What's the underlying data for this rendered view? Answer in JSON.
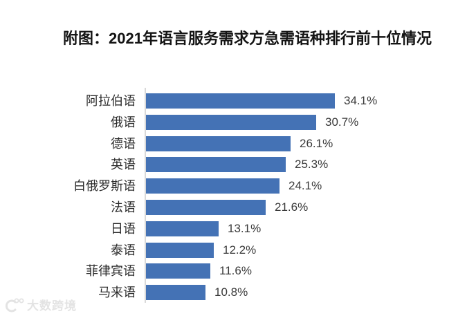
{
  "chart_data": {
    "type": "bar",
    "orientation": "horizontal",
    "title": "附图：2021年语言服务需求方急需语种排行前十位情况",
    "categories": [
      "阿拉伯语",
      "俄语",
      "德语",
      "英语",
      "白俄罗斯语",
      "法语",
      "日语",
      "泰语",
      "菲律宾语",
      "马来语"
    ],
    "values": [
      34.1,
      30.7,
      26.1,
      25.3,
      24.1,
      21.6,
      13.1,
      12.2,
      11.6,
      10.8
    ],
    "value_labels": [
      "34.1%",
      "30.7%",
      "26.1%",
      "25.3%",
      "24.1%",
      "21.6%",
      "13.1%",
      "12.2%",
      "11.6%",
      "10.8%"
    ],
    "xlabel": "",
    "ylabel": "",
    "xlim": [
      0,
      40
    ],
    "grid": false,
    "legend": false,
    "data_label_position": "outside-end",
    "bar_color": "#4472b5",
    "axis_line_color": "#d9d9d9",
    "title_color": "#141414",
    "category_color": "#2b2b2b",
    "value_color": "#3a3a3a"
  },
  "watermark": {
    "brand": "大数跨境",
    "color": "#e3e3e3"
  }
}
